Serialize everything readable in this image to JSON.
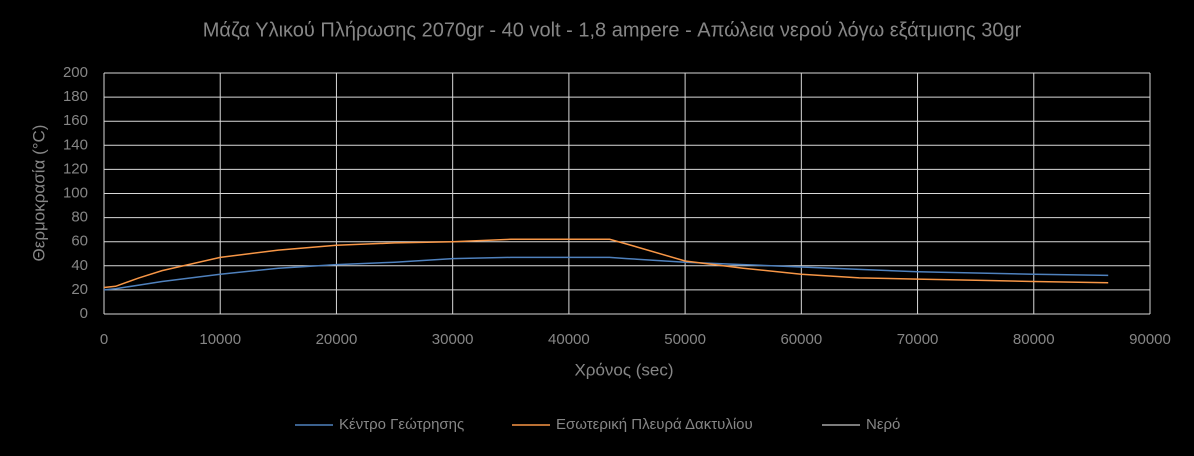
{
  "chart_data": {
    "type": "line",
    "title": "Μάζα Υλικού Πλήρωσης 2070gr - 40 volt - 1,8 ampere - Απώλεια νερού λόγω εξάτμισης 30gr",
    "x_label": "Χρόνος (sec)",
    "y_label": "Θερμοκρασία (°C)",
    "x": [
      0,
      1000,
      3000,
      5000,
      10000,
      15000,
      20000,
      25000,
      30000,
      35000,
      40000,
      43500,
      45000,
      50000,
      55000,
      60000,
      65000,
      70000,
      75000,
      80000,
      86400
    ],
    "series": [
      {
        "name": "Κέντρο Γεώτρησης",
        "color": "#4f81bd",
        "values": [
          20,
          21,
          24,
          27,
          33,
          38,
          41,
          43,
          46,
          47,
          47,
          47,
          46,
          43,
          41,
          39,
          37,
          35,
          34,
          33,
          32
        ]
      },
      {
        "name": "Εσωτερική Πλευρά Δακτυλίου",
        "color": "#f79646",
        "values": [
          22,
          23,
          30,
          36,
          47,
          53,
          57,
          59,
          60,
          62,
          62,
          62,
          58,
          44,
          38,
          33,
          30,
          29,
          28,
          27,
          26
        ]
      },
      {
        "name": "Νερό",
        "color": "#a5a5a5",
        "values": [
          null,
          null,
          null,
          null,
          null,
          null,
          null,
          null,
          null,
          null,
          null,
          null,
          null,
          null,
          null,
          null,
          null,
          null,
          null,
          null,
          null
        ]
      }
    ],
    "xlim": [
      0,
      90000
    ],
    "xticks": [
      0,
      10000,
      20000,
      30000,
      40000,
      50000,
      60000,
      70000,
      80000,
      90000
    ],
    "ylim": [
      0,
      200
    ],
    "yticks": [
      0,
      20,
      40,
      60,
      80,
      100,
      120,
      140,
      160,
      180,
      200
    ],
    "grid": true,
    "legend": "bottom"
  }
}
